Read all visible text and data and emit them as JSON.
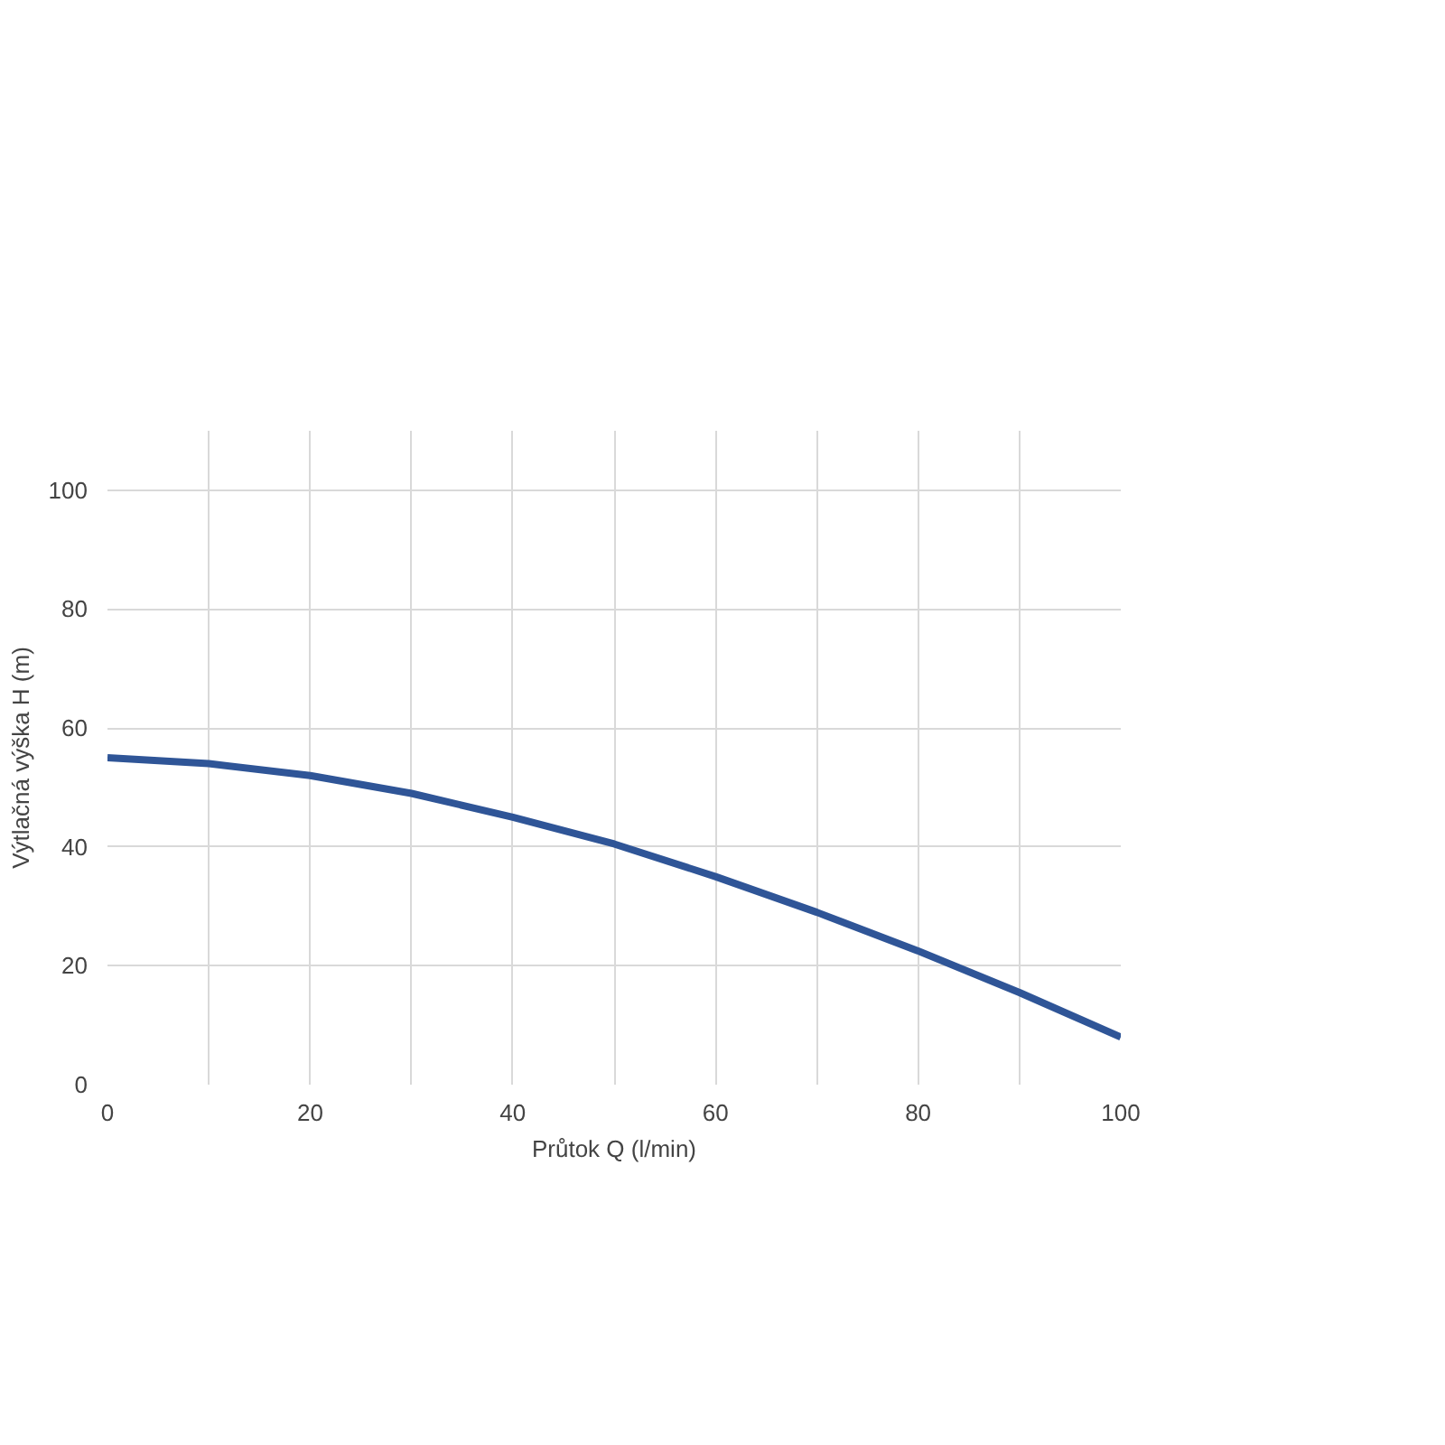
{
  "chart_data": {
    "type": "line",
    "xlabel": "Průtok Q (l/min)",
    "ylabel": "Výtlačná výška H (m)",
    "x": [
      0,
      10,
      20,
      30,
      40,
      50,
      60,
      70,
      80,
      90,
      100
    ],
    "series": [
      {
        "color": "#2f5597",
        "values": [
          55,
          54,
          52,
          49,
          45,
          40.5,
          35,
          29,
          22.5,
          15.5,
          8
        ]
      }
    ],
    "xlim": [
      0,
      100
    ],
    "ylim": [
      0,
      110
    ],
    "xticks": [
      0,
      {
        "value": 10,
        "label": null
      },
      20,
      {
        "value": 30,
        "label": null
      },
      40,
      {
        "value": 50,
        "label": null
      },
      60,
      {
        "value": 70,
        "label": null
      },
      80,
      {
        "value": 90,
        "label": null
      },
      100
    ],
    "yticks": [
      0,
      20,
      40,
      60,
      80,
      100
    ],
    "grid": true,
    "marker": "none",
    "line_style": "solid"
  }
}
